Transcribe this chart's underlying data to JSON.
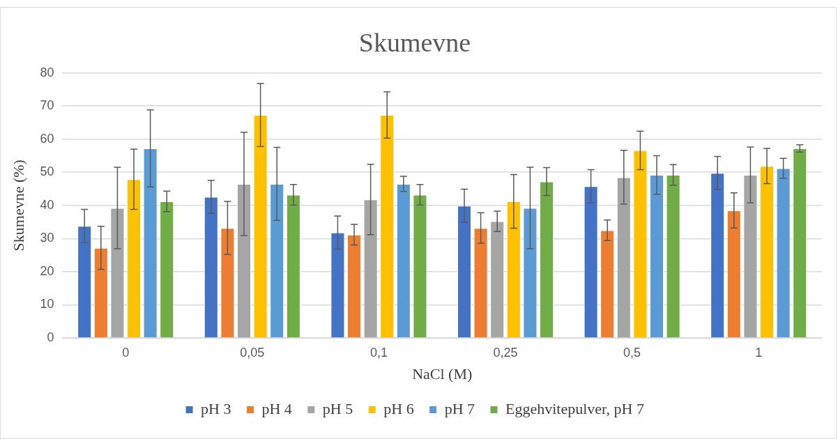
{
  "chart_data": {
    "type": "bar",
    "title": "Skumevne",
    "xlabel": "NaCl (M)",
    "ylabel": "Skumevne (%)",
    "categories": [
      "0",
      "0,05",
      "0,1",
      "0,25",
      "0,5",
      "1"
    ],
    "series": [
      {
        "name": "pH 3",
        "color": "#4472c4",
        "values": [
          33.8,
          42.6,
          31.8,
          39.9,
          45.8,
          49.8
        ],
        "errors": [
          5,
          5,
          5,
          5,
          5,
          5
        ]
      },
      {
        "name": "pH 4",
        "color": "#ed7d31",
        "values": [
          27.2,
          33.2,
          31.2,
          33.2,
          32.5,
          38.5
        ],
        "errors": [
          6.5,
          8,
          3.1,
          4.6,
          3.1,
          5.3
        ]
      },
      {
        "name": "pH 5",
        "color": "#a5a5a5",
        "values": [
          39.2,
          46.5,
          41.8,
          35.2,
          48.5,
          49.2
        ],
        "errors": [
          12.3,
          15.6,
          10.6,
          3.1,
          8.1,
          8.4
        ]
      },
      {
        "name": "pH 6",
        "color": "#ffc000",
        "values": [
          47.9,
          67.3,
          67.3,
          41.2,
          56.6,
          51.9
        ],
        "errors": [
          9.1,
          9.5,
          7,
          8.1,
          5.8,
          5.3
        ]
      },
      {
        "name": "pH 7",
        "color": "#5b9bd5",
        "values": [
          57.2,
          46.5,
          46.5,
          39.2,
          49.2,
          51.2
        ],
        "errors": [
          11.6,
          11,
          2.3,
          12.3,
          5.8,
          3
        ]
      },
      {
        "name": "Eggehvitepulver, pH 7",
        "color": "#70ad47",
        "values": [
          41.2,
          43.2,
          43.2,
          47.2,
          49.2,
          57.2
        ],
        "errors": [
          3.1,
          3.1,
          3.1,
          4.2,
          3.1,
          1.1
        ]
      }
    ],
    "ylim": [
      0,
      80
    ],
    "yticks": [
      0,
      10,
      20,
      30,
      40,
      50,
      60,
      70,
      80
    ],
    "grid": "y",
    "legend": "bottom"
  }
}
